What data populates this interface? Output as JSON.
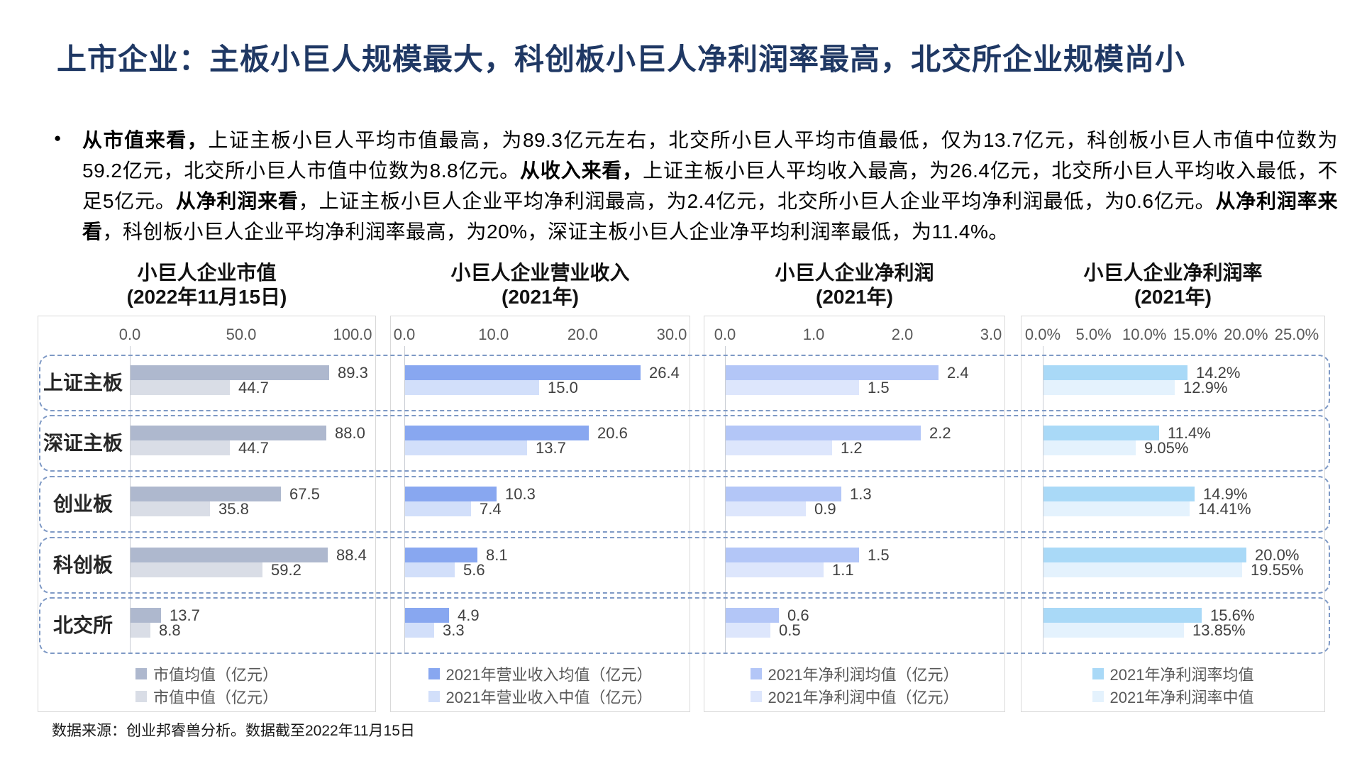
{
  "page": {
    "title": "上市企业：主板小巨人规模最大，科创板小巨人净利润率最高，北交所企业规模尚小",
    "footer": "数据来源：创业邦睿兽分析。数据截至2022年11月15日"
  },
  "bullet": {
    "lines": [
      [
        {
          "t": "从市值来看，",
          "b": true
        },
        {
          "t": "上证主板小巨人平均市值最高，为89.3亿元左右，北交所小巨人平均市值最低，仅为13.7亿元，科创板小巨人市值中位数为",
          "b": false
        }
      ],
      [
        {
          "t": "59.2亿元，北交所小巨人市值中位数为8.8亿元。",
          "b": false
        },
        {
          "t": "从收入来看，",
          "b": true
        },
        {
          "t": "上证主板小巨人平均收入最高，为26.4亿元，北交所小巨人平均收入最低，不",
          "b": false
        }
      ],
      [
        {
          "t": "足5亿元。",
          "b": false
        },
        {
          "t": "从净利润来看",
          "b": true
        },
        {
          "t": "，上证主板小巨人企业平均净利润最高，为2.4亿元，北交所小巨人企业平均净利润最低，为0.6亿元。",
          "b": false
        },
        {
          "t": "从净利润率来",
          "b": true
        }
      ],
      [
        {
          "t": "看",
          "b": true
        },
        {
          "t": "，科创板小巨人企业平均净利润率最高，为20%，深证主板小巨人企业净平均利润率最低，为11.4%。",
          "b": false
        }
      ]
    ]
  },
  "categories": [
    "上证主板",
    "深证主板",
    "创业板",
    "科创板",
    "北交所"
  ],
  "chart_data": [
    {
      "type": "bar",
      "orientation": "horizontal",
      "title": "小巨人企业市值",
      "subtitle": "(2022年11月15日)",
      "categories": [
        "上证主板",
        "深证主板",
        "创业板",
        "科创板",
        "北交所"
      ],
      "axis": {
        "ticks": [
          "0.0",
          "50.0",
          "100.0"
        ],
        "min": 0,
        "max": 100
      },
      "grid": false,
      "legend_position": "bottom",
      "series": [
        {
          "name": "市值均值（亿元）",
          "color": "#aeb8ce",
          "values": [
            89.3,
            88.0,
            67.5,
            88.4,
            13.7
          ],
          "labels": [
            "89.3",
            "88.0",
            "67.5",
            "88.4",
            "13.7"
          ]
        },
        {
          "name": "市值中值（亿元）",
          "color": "#d9dde6",
          "values": [
            44.7,
            44.7,
            35.8,
            59.2,
            8.8
          ],
          "labels": [
            "44.7",
            "44.7",
            "35.8",
            "59.2",
            "8.8"
          ]
        }
      ]
    },
    {
      "type": "bar",
      "orientation": "horizontal",
      "title": "小巨人企业营业收入",
      "subtitle": "(2021年)",
      "categories": [
        "上证主板",
        "深证主板",
        "创业板",
        "科创板",
        "北交所"
      ],
      "axis": {
        "ticks": [
          "0.0",
          "10.0",
          "20.0",
          "30.0"
        ],
        "min": 0,
        "max": 30
      },
      "grid": false,
      "legend_position": "bottom",
      "series": [
        {
          "name": "2021年营业收入均值（亿元）",
          "color": "#88a7f0",
          "values": [
            26.4,
            20.6,
            10.3,
            8.1,
            4.9
          ],
          "labels": [
            "26.4",
            "20.6",
            "10.3",
            "8.1",
            "4.9"
          ]
        },
        {
          "name": "2021年营业收入中值（亿元）",
          "color": "#d2dffa",
          "values": [
            15.0,
            13.7,
            7.4,
            5.6,
            3.3
          ],
          "labels": [
            "15.0",
            "13.7",
            "7.4",
            "5.6",
            "3.3"
          ]
        }
      ]
    },
    {
      "type": "bar",
      "orientation": "horizontal",
      "title": "小巨人企业净利润",
      "subtitle": "(2021年)",
      "categories": [
        "上证主板",
        "深证主板",
        "创业板",
        "科创板",
        "北交所"
      ],
      "axis": {
        "ticks": [
          "0.0",
          "1.0",
          "2.0",
          "3.0"
        ],
        "min": 0,
        "max": 3
      },
      "grid": false,
      "legend_position": "bottom",
      "series": [
        {
          "name": "2021年净利润均值（亿元）",
          "color": "#b3c6f7",
          "values": [
            2.4,
            2.2,
            1.3,
            1.5,
            0.6
          ],
          "labels": [
            "2.4",
            "2.2",
            "1.3",
            "1.5",
            "0.6"
          ]
        },
        {
          "name": "2021年净利润中值（亿元）",
          "color": "#dde6fc",
          "values": [
            1.5,
            1.2,
            0.9,
            1.1,
            0.5
          ],
          "labels": [
            "1.5",
            "1.2",
            "0.9",
            "1.1",
            "0.5"
          ]
        }
      ]
    },
    {
      "type": "bar",
      "orientation": "horizontal",
      "title": "小巨人企业净利润率",
      "subtitle": "(2021年)",
      "categories": [
        "上证主板",
        "深证主板",
        "创业板",
        "科创板",
        "北交所"
      ],
      "axis": {
        "ticks": [
          "0.0%",
          "5.0%",
          "10.0%",
          "15.0%",
          "20.0%",
          "25.0%"
        ],
        "min": 0,
        "max": 25
      },
      "grid": false,
      "legend_position": "bottom",
      "series": [
        {
          "name": "2021年净利润率均值",
          "color": "#a9d9f7",
          "values": [
            14.2,
            11.4,
            14.9,
            20.0,
            15.6
          ],
          "labels": [
            "14.2%",
            "11.4%",
            "14.9%",
            "20.0%",
            "15.6%"
          ]
        },
        {
          "name": "2021年净利润率中值",
          "color": "#e4f2fd",
          "values": [
            12.9,
            9.05,
            14.41,
            19.55,
            13.85
          ],
          "labels": [
            "12.9%",
            "9.05%",
            "14.41%",
            "19.55%",
            "13.85%"
          ]
        }
      ]
    }
  ]
}
